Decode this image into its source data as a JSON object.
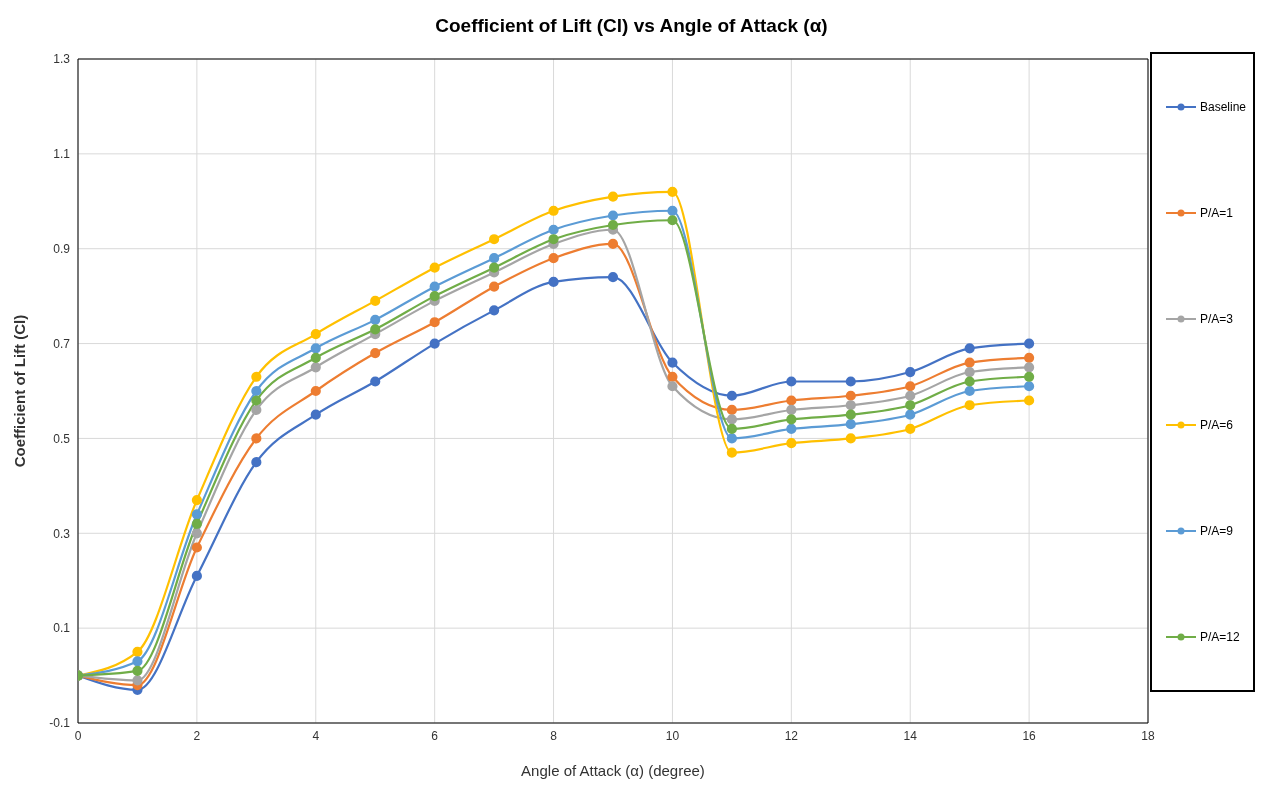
{
  "chart_data": {
    "type": "line",
    "title": "Coefficient of Lift (Cl) vs Angle of Attack (α)",
    "xlabel": "Angle of Attack (α) (degree)",
    "ylabel": "Coefficient of Lift (Cl)",
    "x": [
      0,
      1,
      2,
      3,
      4,
      5,
      6,
      7,
      8,
      9,
      10,
      11,
      12,
      13,
      14,
      15,
      16
    ],
    "series": [
      {
        "name": "Baseline",
        "color": "#4472c4",
        "values": [
          0,
          -0.03,
          0.21,
          0.45,
          0.55,
          0.62,
          0.7,
          0.77,
          0.83,
          0.84,
          0.66,
          0.59,
          0.62,
          0.62,
          0.64,
          0.69,
          0.7
        ]
      },
      {
        "name": "P/A=1",
        "color": "#ed7d31",
        "values": [
          0,
          -0.02,
          0.27,
          0.5,
          0.6,
          0.68,
          0.745,
          0.82,
          0.88,
          0.91,
          0.63,
          0.56,
          0.58,
          0.59,
          0.61,
          0.66,
          0.67
        ]
      },
      {
        "name": "P/A=3",
        "color": "#a5a5a5",
        "values": [
          0,
          -0.01,
          0.3,
          0.56,
          0.65,
          0.72,
          0.79,
          0.85,
          0.91,
          0.94,
          0.61,
          0.54,
          0.56,
          0.57,
          0.59,
          0.64,
          0.65
        ]
      },
      {
        "name": "P/A=6",
        "color": "#ffc000",
        "values": [
          0,
          0.05,
          0.37,
          0.63,
          0.72,
          0.79,
          0.86,
          0.92,
          0.98,
          1.01,
          1.02,
          0.47,
          0.49,
          0.5,
          0.52,
          0.57,
          0.58
        ]
      },
      {
        "name": "P/A=9",
        "color": "#5b9bd5",
        "values": [
          0,
          0.03,
          0.34,
          0.6,
          0.69,
          0.75,
          0.82,
          0.88,
          0.94,
          0.97,
          0.98,
          0.5,
          0.52,
          0.53,
          0.55,
          0.6,
          0.61
        ]
      },
      {
        "name": "P/A=12",
        "color": "#70ad47",
        "values": [
          0,
          0.01,
          0.32,
          0.58,
          0.67,
          0.73,
          0.8,
          0.86,
          0.92,
          0.95,
          0.96,
          0.52,
          0.54,
          0.55,
          0.57,
          0.62,
          0.63
        ]
      }
    ],
    "xlim": [
      0,
      18
    ],
    "xticks": [
      0,
      2,
      4,
      6,
      8,
      10,
      12,
      14,
      16,
      18
    ],
    "ylim": [
      -0.1,
      1.3
    ],
    "yticks": [
      -0.1,
      0.1,
      0.3,
      0.5,
      0.7,
      0.9,
      1.1,
      1.3
    ],
    "grid": true,
    "legend": "right",
    "marker": "circle",
    "line_style": "solid"
  }
}
